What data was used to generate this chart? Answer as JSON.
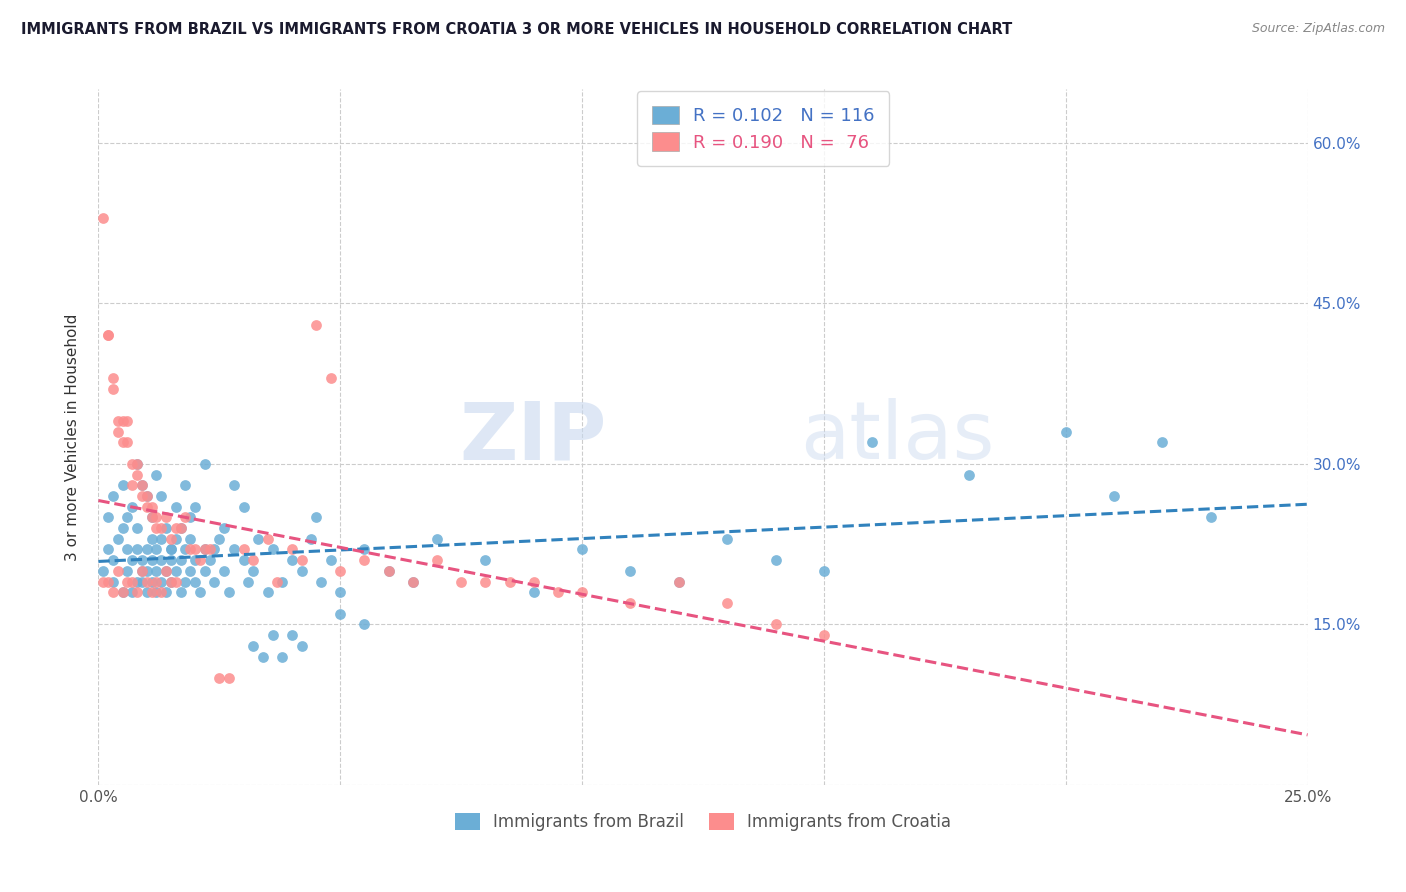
{
  "title": "IMMIGRANTS FROM BRAZIL VS IMMIGRANTS FROM CROATIA 3 OR MORE VEHICLES IN HOUSEHOLD CORRELATION CHART",
  "source": "Source: ZipAtlas.com",
  "ylabel": "3 or more Vehicles in Household",
  "x_min": 0.0,
  "x_max": 0.25,
  "y_min": 0.0,
  "y_max": 0.65,
  "brazil_color": "#6baed6",
  "croatia_color": "#fc8d8d",
  "brazil_R": 0.102,
  "brazil_N": 116,
  "croatia_R": 0.19,
  "croatia_N": 76,
  "brazil_line_color": "#3182bd",
  "croatia_line_color": "#e75480",
  "watermark_zip": "ZIP",
  "watermark_atlas": "atlas",
  "legend_label_brazil": "Immigrants from Brazil",
  "legend_label_croatia": "Immigrants from Croatia",
  "brazil_scatter_x": [
    0.001,
    0.002,
    0.003,
    0.003,
    0.004,
    0.005,
    0.005,
    0.006,
    0.006,
    0.007,
    0.007,
    0.008,
    0.008,
    0.008,
    0.009,
    0.009,
    0.009,
    0.01,
    0.01,
    0.01,
    0.011,
    0.011,
    0.011,
    0.012,
    0.012,
    0.012,
    0.013,
    0.013,
    0.013,
    0.014,
    0.014,
    0.015,
    0.015,
    0.015,
    0.016,
    0.016,
    0.017,
    0.017,
    0.018,
    0.018,
    0.019,
    0.019,
    0.02,
    0.02,
    0.021,
    0.022,
    0.022,
    0.023,
    0.024,
    0.025,
    0.026,
    0.027,
    0.028,
    0.03,
    0.031,
    0.032,
    0.033,
    0.035,
    0.036,
    0.038,
    0.04,
    0.042,
    0.044,
    0.046,
    0.048,
    0.05,
    0.055,
    0.06,
    0.065,
    0.07,
    0.08,
    0.09,
    0.1,
    0.11,
    0.12,
    0.13,
    0.14,
    0.15,
    0.16,
    0.18,
    0.2,
    0.21,
    0.22,
    0.23,
    0.002,
    0.003,
    0.005,
    0.006,
    0.007,
    0.008,
    0.009,
    0.01,
    0.011,
    0.012,
    0.013,
    0.014,
    0.015,
    0.016,
    0.017,
    0.018,
    0.019,
    0.02,
    0.022,
    0.024,
    0.026,
    0.028,
    0.03,
    0.032,
    0.034,
    0.036,
    0.038,
    0.04,
    0.042,
    0.045,
    0.05,
    0.055
  ],
  "brazil_scatter_y": [
    0.2,
    0.22,
    0.19,
    0.21,
    0.23,
    0.18,
    0.24,
    0.2,
    0.22,
    0.18,
    0.21,
    0.19,
    0.22,
    0.24,
    0.2,
    0.19,
    0.21,
    0.18,
    0.22,
    0.2,
    0.21,
    0.19,
    0.23,
    0.18,
    0.2,
    0.22,
    0.21,
    0.19,
    0.23,
    0.2,
    0.18,
    0.22,
    0.19,
    0.21,
    0.2,
    0.23,
    0.18,
    0.21,
    0.22,
    0.19,
    0.2,
    0.23,
    0.21,
    0.19,
    0.18,
    0.22,
    0.2,
    0.21,
    0.19,
    0.23,
    0.2,
    0.18,
    0.22,
    0.21,
    0.19,
    0.2,
    0.23,
    0.18,
    0.22,
    0.19,
    0.21,
    0.2,
    0.23,
    0.19,
    0.21,
    0.18,
    0.22,
    0.2,
    0.19,
    0.23,
    0.21,
    0.18,
    0.22,
    0.2,
    0.19,
    0.23,
    0.21,
    0.2,
    0.32,
    0.29,
    0.33,
    0.27,
    0.32,
    0.25,
    0.25,
    0.27,
    0.28,
    0.25,
    0.26,
    0.3,
    0.28,
    0.27,
    0.25,
    0.29,
    0.27,
    0.24,
    0.22,
    0.26,
    0.24,
    0.28,
    0.25,
    0.26,
    0.3,
    0.22,
    0.24,
    0.28,
    0.26,
    0.13,
    0.12,
    0.14,
    0.12,
    0.14,
    0.13,
    0.25,
    0.16,
    0.15
  ],
  "croatia_scatter_x": [
    0.001,
    0.002,
    0.002,
    0.003,
    0.003,
    0.004,
    0.004,
    0.005,
    0.005,
    0.006,
    0.006,
    0.007,
    0.007,
    0.008,
    0.008,
    0.009,
    0.009,
    0.01,
    0.01,
    0.011,
    0.011,
    0.012,
    0.012,
    0.013,
    0.014,
    0.015,
    0.016,
    0.017,
    0.018,
    0.019,
    0.02,
    0.021,
    0.022,
    0.023,
    0.025,
    0.027,
    0.03,
    0.032,
    0.035,
    0.037,
    0.04,
    0.042,
    0.045,
    0.048,
    0.05,
    0.055,
    0.06,
    0.065,
    0.07,
    0.075,
    0.08,
    0.085,
    0.09,
    0.095,
    0.1,
    0.11,
    0.12,
    0.13,
    0.14,
    0.15,
    0.001,
    0.002,
    0.003,
    0.004,
    0.005,
    0.006,
    0.007,
    0.008,
    0.009,
    0.01,
    0.011,
    0.012,
    0.013,
    0.014,
    0.015,
    0.016
  ],
  "croatia_scatter_y": [
    0.53,
    0.42,
    0.42,
    0.38,
    0.37,
    0.34,
    0.33,
    0.34,
    0.32,
    0.34,
    0.32,
    0.3,
    0.28,
    0.3,
    0.29,
    0.28,
    0.27,
    0.27,
    0.26,
    0.26,
    0.25,
    0.25,
    0.24,
    0.24,
    0.25,
    0.23,
    0.24,
    0.24,
    0.25,
    0.22,
    0.22,
    0.21,
    0.22,
    0.22,
    0.1,
    0.1,
    0.22,
    0.21,
    0.23,
    0.19,
    0.22,
    0.21,
    0.43,
    0.38,
    0.2,
    0.21,
    0.2,
    0.19,
    0.21,
    0.19,
    0.19,
    0.19,
    0.19,
    0.18,
    0.18,
    0.17,
    0.19,
    0.17,
    0.15,
    0.14,
    0.19,
    0.19,
    0.18,
    0.2,
    0.18,
    0.19,
    0.19,
    0.18,
    0.2,
    0.19,
    0.18,
    0.19,
    0.18,
    0.2,
    0.19,
    0.19
  ]
}
